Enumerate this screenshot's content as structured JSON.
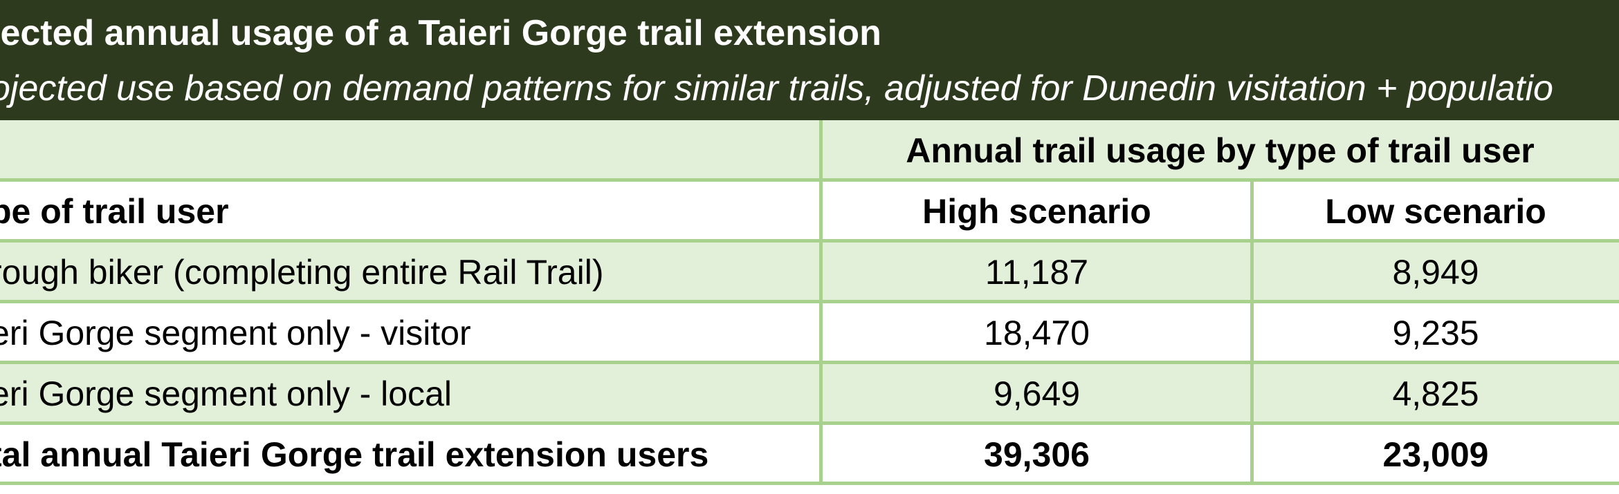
{
  "header": {
    "title": "jected annual usage of a Taieri Gorge trail extension",
    "subtitle": "ojected use based on demand patterns for similar trails, adjusted for Dunedin visitation + populatio"
  },
  "table": {
    "group_header": "Annual trail usage by type of trail user",
    "column_headers": {
      "label": "pe of trail user",
      "high": "High scenario",
      "low": "Low scenario"
    },
    "rows": [
      {
        "label": "rough biker (completing entire Rail Trail)",
        "high": "11,187",
        "low": "8,949"
      },
      {
        "label": "eri Gorge segment only - visitor",
        "high": "18,470",
        "low": "9,235"
      },
      {
        "label": "eri Gorge segment only - local",
        "high": "9,649",
        "low": "4,825"
      }
    ],
    "total": {
      "label": "tal annual Taieri Gorge trail extension users",
      "high": "39,306",
      "low": "23,009"
    }
  },
  "colors": {
    "banner": "#2e3a1e",
    "shade": "#e2f0d9",
    "border": "#a9d18e"
  }
}
